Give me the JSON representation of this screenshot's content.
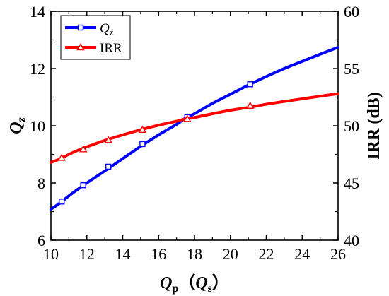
{
  "chart_data": {
    "type": "line",
    "x_axis": {
      "label": {
        "main": "Q",
        "sub": "p",
        "paren_open": "（",
        "main2": "Q",
        "sub2": "s",
        "paren_close": "）"
      },
      "range": [
        10,
        26
      ],
      "ticks": [
        10,
        12,
        14,
        16,
        18,
        20,
        22,
        24,
        26
      ]
    },
    "y_left": {
      "label": {
        "main": "Q",
        "sub": "z"
      },
      "range": [
        6,
        14
      ],
      "ticks": [
        6,
        8,
        10,
        12,
        14
      ]
    },
    "y_right": {
      "label": "IRR (dB)",
      "range": [
        40,
        60
      ],
      "ticks": [
        40,
        45,
        50,
        55,
        60
      ]
    },
    "legend": {
      "position": "top-left",
      "frame": true
    },
    "grid": false,
    "series": [
      {
        "name": "Q",
        "name_sub": "z",
        "axis": "left",
        "color": "#0000ff",
        "marker": "square",
        "curve_x": [
          10,
          10.5,
          11,
          11.5,
          12,
          13,
          14,
          15,
          16,
          17,
          17.5,
          18,
          19,
          20,
          21,
          22,
          23,
          24,
          25,
          26
        ],
        "curve_y": [
          7.08,
          7.3,
          7.55,
          7.78,
          8.0,
          8.42,
          8.85,
          9.28,
          9.68,
          10.05,
          10.27,
          10.42,
          10.78,
          11.1,
          11.42,
          11.72,
          12.0,
          12.25,
          12.5,
          12.74
        ],
        "marker_x": [
          10.6,
          11.8,
          13.2,
          15.1,
          17.6,
          21.1
        ],
        "marker_y": [
          7.35,
          7.92,
          8.57,
          9.36,
          10.3,
          11.45
        ]
      },
      {
        "name": "IRR",
        "axis": "right",
        "color": "#ff0000",
        "marker": "triangle",
        "curve_x": [
          10,
          10.5,
          11,
          11.5,
          12,
          13,
          14,
          15,
          16,
          17,
          17.5,
          18,
          19,
          20,
          21,
          22,
          23,
          24,
          25,
          26
        ],
        "curve_y": [
          46.8,
          47.1,
          47.5,
          47.85,
          48.15,
          48.72,
          49.2,
          49.65,
          50.05,
          50.4,
          50.6,
          50.72,
          51.05,
          51.35,
          51.6,
          51.88,
          52.12,
          52.35,
          52.58,
          52.8
        ],
        "marker_x": [
          10.6,
          11.8,
          13.2,
          15.1,
          17.6,
          21.1
        ],
        "marker_y": [
          47.2,
          47.95,
          48.75,
          49.65,
          50.6,
          51.75
        ]
      }
    ]
  }
}
